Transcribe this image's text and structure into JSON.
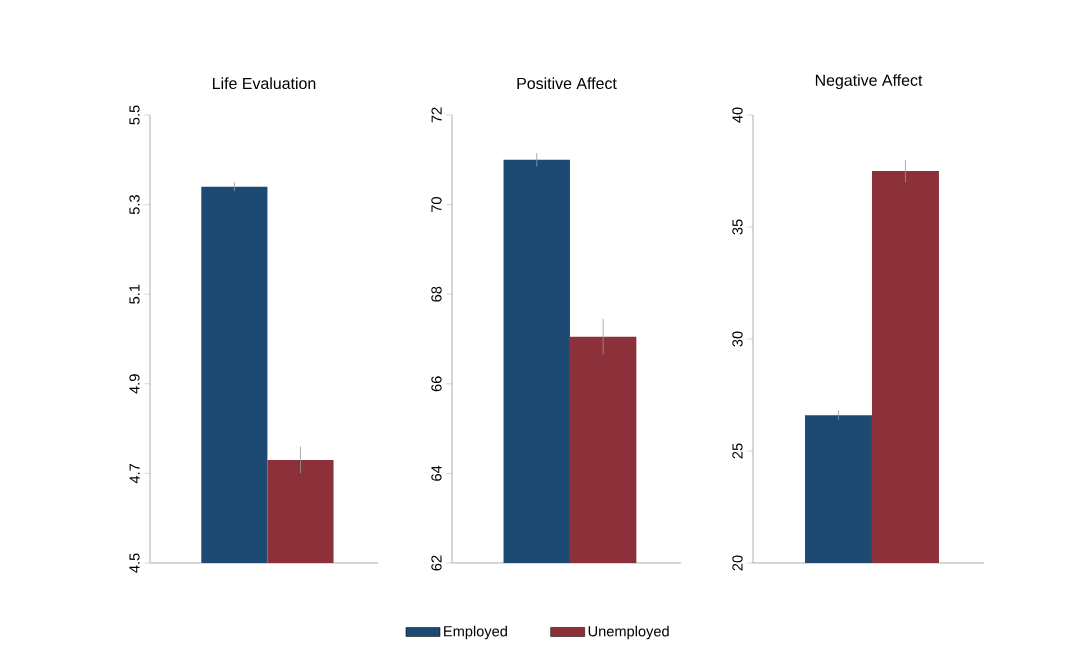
{
  "chart_data": [
    {
      "type": "bar",
      "title": "Life Evaluation",
      "categories": [
        null
      ],
      "ylim": [
        4.5,
        5.5
      ],
      "yticks": [
        4.5,
        4.7,
        4.9,
        5.1,
        5.3,
        5.5
      ],
      "tick_labels": "y",
      "grid": false,
      "legend": "bottom",
      "series": [
        {
          "name": "Employed",
          "color": "#1c4a72",
          "values": [
            5.34
          ],
          "errors": [
            0.01
          ]
        },
        {
          "name": "Unemployed",
          "color": "#8c3039",
          "values": [
            4.73
          ],
          "errors": [
            0.03
          ]
        }
      ]
    },
    {
      "type": "bar",
      "title": "Positive Affect",
      "categories": [
        null
      ],
      "ylim": [
        62,
        72
      ],
      "yticks": [
        62,
        64,
        66,
        68,
        70,
        72
      ],
      "tick_labels": "y",
      "grid": false,
      "series": [
        {
          "color": "#1c4a72",
          "values": [
            71.0
          ],
          "errors": [
            0.15
          ]
        },
        {
          "color": "#8c3039",
          "values": [
            67.05
          ],
          "errors": [
            0.4
          ]
        }
      ]
    },
    {
      "type": "bar",
      "title": "Negative Affect",
      "categories": [
        null
      ],
      "ylim": [
        20,
        40
      ],
      "yticks": [
        20,
        25,
        30,
        35,
        40
      ],
      "tick_labels": "y",
      "grid": false,
      "series": [
        {
          "color": "#1c4a72",
          "values": [
            26.6
          ],
          "errors": [
            0.2
          ]
        },
        {
          "color": "#8c3039",
          "values": [
            37.5
          ],
          "errors": [
            0.5
          ]
        }
      ]
    }
  ]
}
